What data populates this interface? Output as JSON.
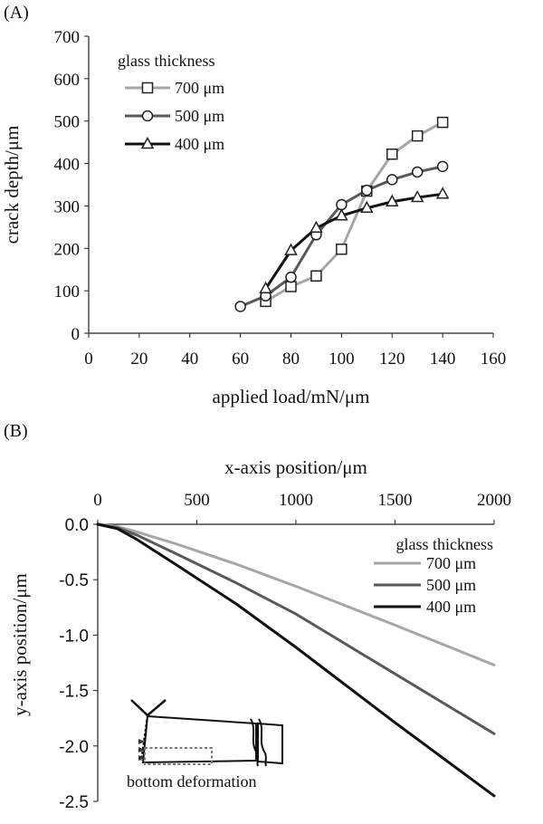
{
  "panels": {
    "a": {
      "label": "(A)"
    },
    "b": {
      "label": "(B)"
    }
  },
  "inset": {
    "label": "bottom deformation"
  },
  "colors": {
    "s700": "#a6a6a6",
    "s500": "#595959",
    "s400": "#111111"
  },
  "chart_data": [
    {
      "type": "line",
      "title": "",
      "xlabel": "applied load/mN/μm",
      "ylabel": "crack depth/μm",
      "xlim": [
        0,
        160
      ],
      "ylim": [
        0,
        700
      ],
      "xticks": [
        0,
        20,
        40,
        60,
        80,
        100,
        120,
        140,
        160
      ],
      "yticks": [
        0,
        100,
        200,
        300,
        400,
        500,
        600,
        700
      ],
      "grid": false,
      "legend": {
        "title": "glass thickness",
        "position": "top-left"
      },
      "series": [
        {
          "name": "700 μm",
          "marker": "square",
          "x": [
            70,
            80,
            90,
            100,
            110,
            120,
            130,
            140
          ],
          "y": [
            75,
            110,
            135,
            198,
            335,
            422,
            465,
            497
          ]
        },
        {
          "name": "500 μm",
          "marker": "circle",
          "x": [
            60,
            70,
            80,
            90,
            100,
            110,
            120,
            130,
            140
          ],
          "y": [
            63,
            88,
            132,
            232,
            303,
            337,
            362,
            380,
            393
          ]
        },
        {
          "name": "400 μm",
          "marker": "triangle",
          "x": [
            70,
            80,
            90,
            100,
            110,
            120,
            130,
            140
          ],
          "y": [
            105,
            195,
            248,
            277,
            295,
            310,
            320,
            328
          ]
        }
      ]
    },
    {
      "type": "line",
      "title": "",
      "xlabel": "x-axis position/μm",
      "ylabel": "y-axis position/μm",
      "xlim": [
        0,
        2000
      ],
      "ylim": [
        -2.5,
        0
      ],
      "xticks": [
        0,
        500,
        1000,
        1500,
        2000
      ],
      "yticks": [
        "0.0",
        "-0.5",
        "-1.0",
        "-1.5",
        "-2.0",
        "-2.5"
      ],
      "x_axis_position": "top",
      "grid": false,
      "legend": {
        "title": "glass thickness",
        "position": "top-right"
      },
      "series": [
        {
          "name": "700 μm",
          "x": [
            0,
            100,
            200,
            400,
            700,
            1000,
            1500,
            2000
          ],
          "y": [
            0,
            -0.02,
            -0.07,
            -0.18,
            -0.36,
            -0.56,
            -0.91,
            -1.27
          ]
        },
        {
          "name": "500 μm",
          "x": [
            0,
            100,
            200,
            400,
            700,
            1000,
            1500,
            2000
          ],
          "y": [
            0,
            -0.03,
            -0.1,
            -0.27,
            -0.53,
            -0.81,
            -1.35,
            -1.89
          ]
        },
        {
          "name": "400 μm",
          "x": [
            0,
            100,
            200,
            400,
            700,
            1000,
            1500,
            2000
          ],
          "y": [
            0,
            -0.04,
            -0.14,
            -0.37,
            -0.72,
            -1.11,
            -1.79,
            -2.45
          ]
        }
      ]
    }
  ]
}
